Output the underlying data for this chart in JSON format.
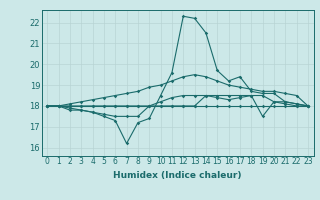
{
  "title": "",
  "xlabel": "Humidex (Indice chaleur)",
  "ylabel": "",
  "background_color": "#cce8e8",
  "grid_color": "#b8d4d4",
  "line_color": "#1a6b6b",
  "xlim": [
    -0.5,
    23.5
  ],
  "ylim": [
    15.6,
    22.6
  ],
  "yticks": [
    16,
    17,
    18,
    19,
    20,
    21,
    22
  ],
  "xticks": [
    0,
    1,
    2,
    3,
    4,
    5,
    6,
    7,
    8,
    9,
    10,
    11,
    12,
    13,
    14,
    15,
    16,
    17,
    18,
    19,
    20,
    21,
    22,
    23
  ],
  "curves": [
    {
      "x": [
        0,
        1,
        2,
        3,
        4,
        5,
        6,
        7,
        8,
        9,
        10,
        11,
        12,
        13,
        14,
        15,
        16,
        17,
        18,
        19,
        20,
        21,
        22,
        23
      ],
      "y": [
        18,
        18,
        17.8,
        17.8,
        17.7,
        17.5,
        17.3,
        16.2,
        17.2,
        17.4,
        18.5,
        19.6,
        22.3,
        22.2,
        21.5,
        19.7,
        19.2,
        19.4,
        18.7,
        18.6,
        18.6,
        18.2,
        18.1,
        18.0
      ]
    },
    {
      "x": [
        0,
        1,
        2,
        3,
        4,
        5,
        6,
        7,
        8,
        9,
        10,
        11,
        12,
        13,
        14,
        15,
        16,
        17,
        18,
        19,
        20,
        21,
        22,
        23
      ],
      "y": [
        18,
        18,
        18,
        18,
        18,
        18,
        18,
        18,
        18,
        18,
        18,
        18,
        18,
        18,
        18,
        18,
        18,
        18,
        18,
        18,
        18,
        18,
        18,
        18
      ]
    },
    {
      "x": [
        0,
        1,
        2,
        3,
        4,
        5,
        6,
        7,
        8,
        9,
        10,
        11,
        12,
        13,
        14,
        15,
        16,
        17,
        18,
        19,
        20,
        21,
        22,
        23
      ],
      "y": [
        18,
        18,
        17.9,
        17.8,
        17.7,
        17.6,
        17.5,
        17.5,
        17.5,
        18.0,
        18.2,
        18.4,
        18.5,
        18.5,
        18.5,
        18.4,
        18.3,
        18.4,
        18.5,
        18.5,
        18.2,
        18.2,
        18.1,
        18.0
      ]
    },
    {
      "x": [
        0,
        1,
        2,
        3,
        4,
        5,
        6,
        7,
        8,
        9,
        10,
        11,
        12,
        13,
        14,
        15,
        16,
        17,
        18,
        19,
        20,
        21,
        22,
        23
      ],
      "y": [
        18,
        18,
        18.1,
        18.2,
        18.3,
        18.4,
        18.5,
        18.6,
        18.7,
        18.9,
        19.0,
        19.2,
        19.4,
        19.5,
        19.4,
        19.2,
        19.0,
        18.9,
        18.8,
        18.7,
        18.7,
        18.6,
        18.5,
        18.0
      ]
    },
    {
      "x": [
        0,
        1,
        2,
        3,
        4,
        5,
        6,
        7,
        8,
        9,
        10,
        11,
        12,
        13,
        14,
        15,
        16,
        17,
        18,
        19,
        20,
        21,
        22,
        23
      ],
      "y": [
        18,
        18,
        18,
        18,
        18,
        18,
        18,
        18,
        18,
        18,
        18,
        18,
        18,
        18,
        18.5,
        18.5,
        18.5,
        18.5,
        18.5,
        17.5,
        18.2,
        18.1,
        18.0,
        18.0
      ]
    }
  ]
}
